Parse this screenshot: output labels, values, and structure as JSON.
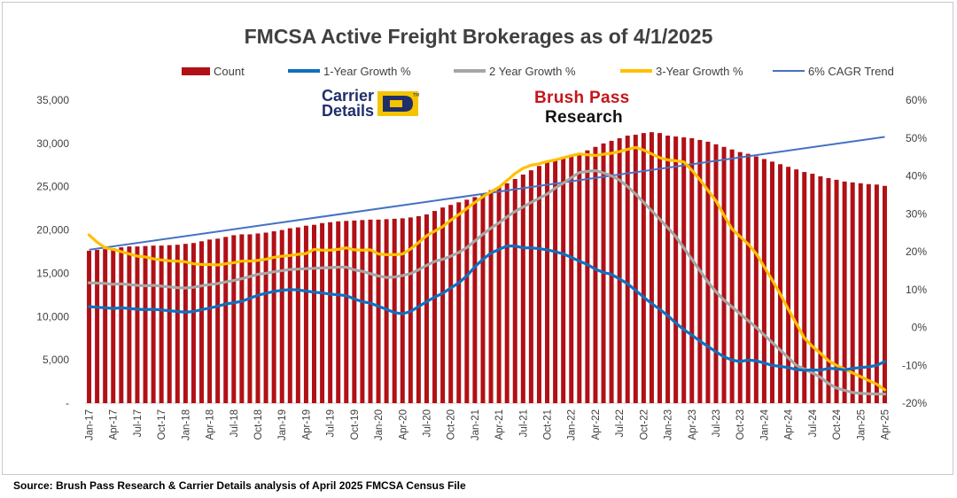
{
  "footer": {
    "source": "Source: Brush Pass Research & Carrier Details analysis of April 2025 FMCSA Census File"
  },
  "logos": {
    "carrier_details_line1": "Carrier",
    "carrier_details_line2": "Details",
    "brush_pass_line1": "Brush Pass",
    "brush_pass_line2": "Research"
  },
  "colors": {
    "count": "#b01016",
    "growth1": "#0f70c0",
    "growth2": "#a6a6a6",
    "growth3": "#ffc000",
    "trend": "#4472c4"
  },
  "chart_data": {
    "type": "bar",
    "title": "FMCSA Active Freight Brokerages as of 4/1/2025",
    "x_tick_labels": [
      "Jan-17",
      "Apr-17",
      "Jul-17",
      "Oct-17",
      "Jan-18",
      "Apr-18",
      "Jul-18",
      "Oct-18",
      "Jan-19",
      "Apr-19",
      "Jul-19",
      "Oct-19",
      "Jan-20",
      "Apr-20",
      "Jul-20",
      "Oct-20",
      "Jan-21",
      "Apr-21",
      "Jul-21",
      "Oct-21",
      "Jan-22",
      "Apr-22",
      "Jul-22",
      "Oct-22",
      "Jan-23",
      "Apr-23",
      "Jul-23",
      "Oct-23",
      "Jan-24",
      "Apr-24",
      "Jul-24",
      "Oct-24",
      "Jan-25",
      "Apr-25"
    ],
    "y_left": {
      "min": 0,
      "max": 35000,
      "ticks": [
        "-",
        "5,000",
        "10,000",
        "15,000",
        "20,000",
        "25,000",
        "30,000",
        "35,000"
      ]
    },
    "y_right": {
      "min": -20,
      "max": 60,
      "ticks": [
        "-20%",
        "-10%",
        "0%",
        "10%",
        "20%",
        "30%",
        "40%",
        "50%",
        "60%"
      ]
    },
    "legend": [
      "Count",
      "1-Year Growth %",
      "2 Year Growth %",
      "3-Year Growth %",
      "6% CAGR Trend"
    ],
    "legend_position": "top",
    "series": [
      {
        "name": "Count",
        "type": "bar",
        "axis": "left",
        "values": [
          17600,
          17700,
          17800,
          17900,
          18000,
          18100,
          18100,
          18150,
          18200,
          18200,
          18250,
          18300,
          18400,
          18500,
          18700,
          18900,
          19000,
          19200,
          19400,
          19500,
          19500,
          19600,
          19700,
          19850,
          20000,
          20200,
          20300,
          20500,
          20600,
          20800,
          20900,
          21000,
          21050,
          21100,
          21150,
          21200,
          21200,
          21250,
          21300,
          21350,
          21450,
          21600,
          21800,
          22200,
          22600,
          22900,
          23200,
          23500,
          23800,
          24200,
          24600,
          25000,
          25400,
          25900,
          26400,
          26900,
          27400,
          27800,
          28100,
          28400,
          28700,
          28900,
          29200,
          29600,
          30000,
          30300,
          30600,
          30900,
          31000,
          31200,
          31300,
          31200,
          30900,
          30800,
          30700,
          30600,
          30400,
          30200,
          29900,
          29600,
          29300,
          29000,
          28800,
          28500,
          28200,
          27900,
          27600,
          27300,
          27000,
          26700,
          26500,
          26200,
          26000,
          25800,
          25600,
          25500,
          25400,
          25300,
          25250,
          25100
        ]
      },
      {
        "name": "1-Year Growth %",
        "type": "line",
        "axis": "right",
        "values": [
          5.5,
          5.3,
          5.2,
          5.0,
          5.2,
          5.0,
          4.8,
          4.7,
          4.8,
          4.6,
          4.4,
          4.2,
          4.0,
          4.2,
          4.7,
          5.1,
          5.6,
          6.2,
          6.5,
          6.9,
          7.7,
          8.5,
          9.0,
          9.5,
          9.8,
          10.0,
          9.9,
          9.6,
          9.3,
          9.1,
          8.8,
          8.6,
          8.4,
          7.5,
          6.8,
          6.4,
          5.6,
          4.8,
          3.9,
          3.6,
          4.2,
          5.5,
          6.8,
          8.0,
          9.0,
          10.4,
          11.8,
          13.6,
          16.0,
          18.0,
          19.6,
          20.6,
          21.5,
          21.5,
          21.0,
          21.0,
          20.8,
          20.5,
          20.0,
          19.4,
          18.5,
          17.5,
          16.6,
          15.4,
          14.5,
          14.0,
          12.8,
          11.5,
          9.8,
          8.0,
          6.3,
          4.8,
          3.1,
          1.2,
          -0.6,
          -2.0,
          -3.6,
          -5.0,
          -6.4,
          -7.8,
          -8.6,
          -9.0,
          -8.6,
          -8.8,
          -9.4,
          -10.0,
          -10.3,
          -10.6,
          -11.1,
          -11.3,
          -11.2,
          -11.3,
          -10.8,
          -10.9,
          -11.2,
          -10.8,
          -10.6,
          -10.4,
          -10.0,
          -9.0
        ]
      },
      {
        "name": "2 Year Growth %",
        "type": "line",
        "axis": "right",
        "values": [
          11.8,
          11.7,
          11.6,
          11.4,
          11.5,
          11.3,
          11.1,
          11.0,
          11.1,
          10.9,
          10.7,
          10.5,
          10.4,
          10.6,
          11.0,
          11.3,
          11.6,
          12.0,
          12.4,
          12.9,
          13.4,
          14.0,
          14.3,
          14.7,
          15.0,
          15.3,
          15.4,
          15.5,
          15.6,
          15.7,
          15.8,
          15.9,
          15.9,
          15.2,
          14.8,
          14.2,
          13.6,
          13.2,
          13.3,
          13.7,
          14.2,
          15.2,
          16.4,
          17.4,
          18.0,
          18.8,
          19.8,
          21.1,
          22.8,
          24.6,
          26.2,
          27.6,
          29.2,
          30.6,
          31.8,
          33.0,
          34.1,
          35.2,
          36.8,
          38.1,
          39.5,
          40.9,
          41.2,
          41.4,
          40.8,
          40.0,
          38.9,
          37.2,
          35.2,
          33.0,
          30.8,
          28.6,
          26.3,
          24.0,
          21.0,
          18.0,
          15.0,
          12.0,
          9.4,
          7.2,
          5.4,
          3.6,
          1.8,
          0.0,
          -2.0,
          -4.0,
          -6.0,
          -8.0,
          -10.0,
          -11.0,
          -12.0,
          -13.2,
          -14.8,
          -16.0,
          -16.6,
          -17.2,
          -17.4,
          -17.5,
          -17.6,
          -17.6
        ]
      },
      {
        "name": "3-Year Growth %",
        "type": "line",
        "axis": "right",
        "values": [
          24.4,
          22.5,
          21.0,
          20.6,
          20.0,
          19.4,
          18.8,
          18.6,
          18.1,
          17.8,
          17.6,
          17.5,
          17.3,
          16.8,
          16.6,
          16.6,
          16.5,
          16.8,
          17.1,
          17.5,
          17.5,
          17.7,
          18.0,
          18.5,
          18.8,
          19.0,
          19.3,
          19.5,
          20.6,
          20.4,
          20.4,
          20.6,
          21.0,
          20.5,
          20.4,
          20.5,
          19.4,
          19.2,
          19.2,
          19.4,
          20.7,
          22.4,
          24.2,
          25.4,
          26.6,
          28.3,
          29.8,
          31.4,
          33.0,
          34.5,
          35.8,
          37.0,
          38.8,
          40.6,
          42.0,
          42.8,
          43.2,
          43.8,
          44.2,
          44.8,
          45.3,
          45.8,
          45.6,
          45.4,
          45.7,
          46.0,
          46.4,
          47.0,
          47.5,
          46.8,
          45.8,
          44.8,
          44.2,
          44.0,
          43.7,
          41.5,
          39.0,
          36.2,
          33.4,
          29.6,
          26.0,
          24.0,
          22.0,
          19.5,
          16.0,
          12.5,
          8.8,
          4.8,
          1.0,
          -2.8,
          -5.0,
          -6.8,
          -8.8,
          -10.0,
          -11.0,
          -12.0,
          -13.0,
          -14.0,
          -15.0,
          -16.5
        ]
      },
      {
        "name": "6% CAGR Trend",
        "type": "line",
        "axis": "right",
        "values_start": 20.5,
        "values_end": 50.3
      }
    ]
  }
}
